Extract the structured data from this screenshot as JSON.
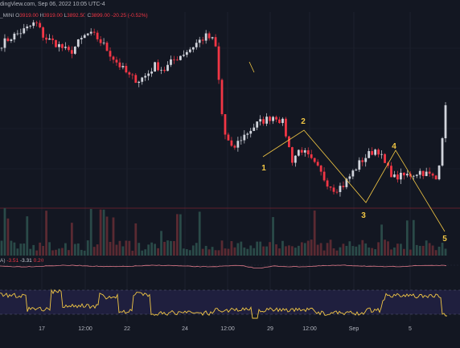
{
  "header": {
    "source": "dingView.com, Sep 06, 2022 10:05 UTC-4",
    "symbol_suffix": "_MINI",
    "open_label": "O",
    "open": "3919.00",
    "high_label": "H",
    "high": "3919.00",
    "low_label": "L",
    "low": "3892.50",
    "close_label": "C",
    "close": "3899.00",
    "change": "-20.25 (-0.52%)"
  },
  "indicator": {
    "prefix": "A)",
    "v1": "-3.51",
    "v2": "-3.31",
    "v3": "0.20"
  },
  "colors": {
    "background": "#131722",
    "up": "#d1d4dc",
    "down": "#f23645",
    "wave": "#f2c744",
    "macd": "#e07a8a",
    "osc": "#f2c744",
    "band": "#1f1f3e"
  },
  "chart_data": {
    "type": "candlestick",
    "x_ticks": [
      "17",
      "12:00",
      "22",
      "24",
      "12:00",
      "29",
      "12:00",
      "Sep",
      "5"
    ],
    "elliott_wave_labels": [
      "1",
      "2",
      "3",
      "4",
      "5"
    ],
    "close_path": [
      3982,
      3990,
      3996,
      4002,
      4010,
      3990,
      3985,
      3978,
      3970,
      3984,
      3995,
      3992,
      3980,
      3965,
      3952,
      3940,
      3935,
      3942,
      3955,
      3948,
      3960,
      3968,
      3975,
      3985,
      3992,
      3985,
      3870,
      3845,
      3860,
      3870,
      3880,
      3885,
      3890,
      3880,
      3832,
      3848,
      3835,
      3822,
      3805,
      3795,
      3800,
      3815,
      3830,
      3840,
      3848,
      3825,
      3810,
      3812,
      3814,
      3818,
      3814,
      3807,
      3899
    ]
  }
}
